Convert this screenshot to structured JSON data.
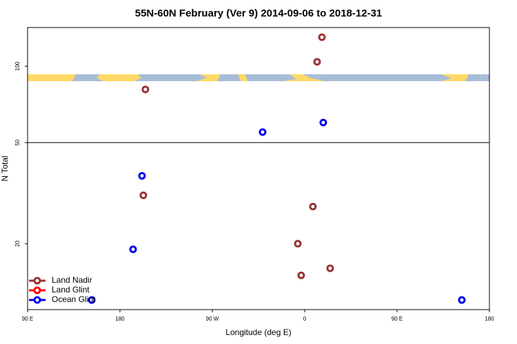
{
  "chart_data": {
    "type": "scatter",
    "title": "55N-60N February (Ver 9)   2014-09-06 to 2018-12-31",
    "xlabel": "Longitude (deg E)",
    "ylabel": "N Total",
    "xlim": [
      90,
      540
    ],
    "xticks": [
      {
        "value": 90,
        "label": "90 E"
      },
      180,
      {
        "value": 270,
        "label": "90 W"
      },
      {
        "value": 360,
        "label": "0"
      },
      {
        "value": 450,
        "label": "90 E"
      },
      {
        "value": 540,
        "label": "180"
      }
    ],
    "ylim": [
      11,
      142
    ],
    "yticks": [
      20,
      50,
      100
    ],
    "log_y": true,
    "hline": 50,
    "legend": "bottom-left",
    "series": [
      {
        "name": "Land Nadir",
        "color": "#993333",
        "x": [
          376.8,
          372.1,
          204.8,
          202.8,
          368.0,
          353.3,
          384.8,
          356.6
        ],
        "values": [
          130,
          104,
          81,
          31,
          28,
          20,
          16,
          15
        ]
      },
      {
        "name": "Land Glint",
        "color": "#ff0000",
        "x": [],
        "values": []
      },
      {
        "name": "Ocean Glint",
        "color": "#0000ee",
        "x": [
          319.0,
          378.1,
          201.5,
          192.8,
          152.5,
          513.1
        ],
        "values": [
          55,
          60,
          37,
          19,
          12,
          12
        ]
      }
    ]
  }
}
